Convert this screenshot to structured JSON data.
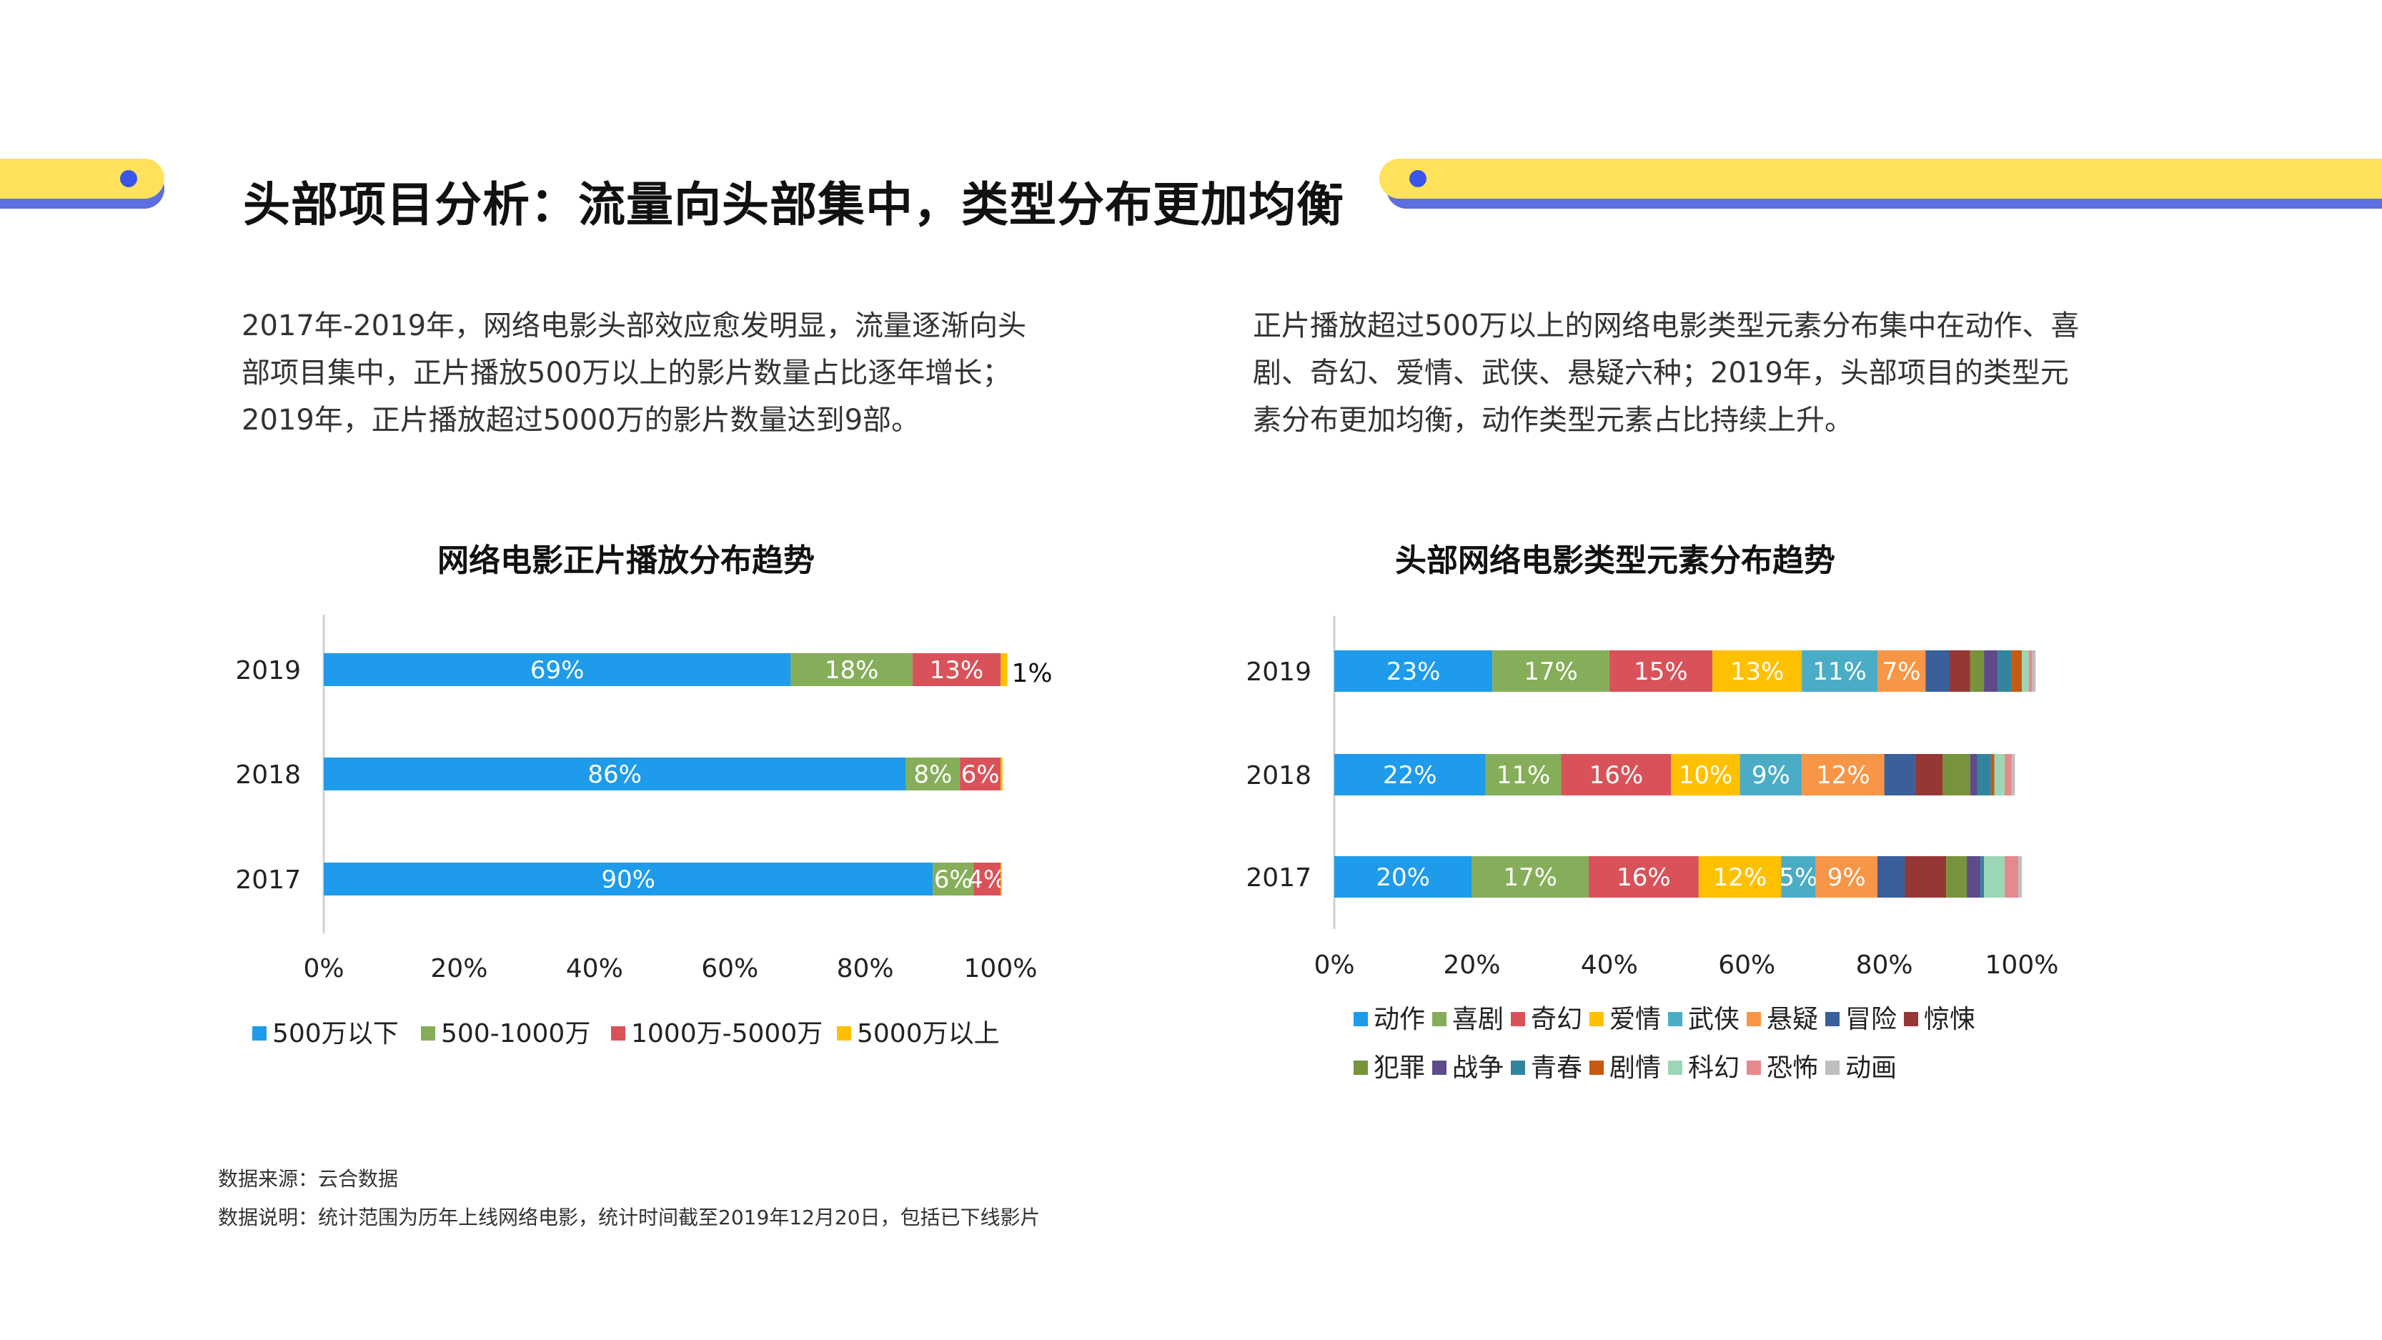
{
  "title": "头部项目分析：流量向头部集中，类型分布更加均衡",
  "left_paragraph": "2017年-2019年，网络电影头部效应愈发明显，流量逐渐向头部项目集中，正片播放500万以上的影片数量占比逐年增长；2019年，正片播放超过5000万的影片数量达到9部。",
  "right_paragraph": "正片播放超过500万以上的网络电影类型元素分布集中在动作、喜剧、奇幻、爱情、武侠、悬疑六种；2019年，头部项目的类型元素分布更加均衡，动作类型元素占比持续上升。",
  "footer": {
    "source": "数据来源：云合数据",
    "note": "数据说明：统计范围为历年上线网络电影，统计时间截至2019年12月20日，包括已下线影片"
  },
  "colors": {
    "accent_yellow": "#FFE15C",
    "accent_blue": "#5B6FE0",
    "dot_blue": "#3A56E8"
  },
  "chart_data": [
    {
      "type": "bar",
      "orientation": "horizontal",
      "stacked": true,
      "title": "网络电影正片播放分布趋势",
      "categories": [
        "2019",
        "2018",
        "2017"
      ],
      "xlim": [
        0,
        100
      ],
      "xticks": [
        "0%",
        "20%",
        "40%",
        "60%",
        "80%",
        "100%"
      ],
      "legend_position": "bottom",
      "series": [
        {
          "name": "500万以下",
          "color": "#1E9BEA",
          "values": [
            69,
            86,
            90
          ],
          "labels": [
            "69%",
            "86%",
            "90%"
          ]
        },
        {
          "name": "500-1000万",
          "color": "#86AE5A",
          "values": [
            18,
            8,
            6
          ],
          "labels": [
            "18%",
            "8%",
            "6%"
          ]
        },
        {
          "name": "1000万-5000万",
          "color": "#D9525A",
          "values": [
            13,
            6,
            4
          ],
          "labels": [
            "13%",
            "6%",
            "4%"
          ]
        },
        {
          "name": "5000万以上",
          "color": "#FFC000",
          "values": [
            1,
            0.3,
            0.2
          ],
          "labels": [
            "1%",
            "",
            ""
          ]
        }
      ]
    },
    {
      "type": "bar",
      "orientation": "horizontal",
      "stacked": true,
      "title": "头部网络电影类型元素分布趋势",
      "categories": [
        "2019",
        "2018",
        "2017"
      ],
      "xlim": [
        0,
        100
      ],
      "xticks": [
        "0%",
        "20%",
        "40%",
        "60%",
        "80%",
        "100%"
      ],
      "legend_position": "bottom",
      "series": [
        {
          "name": "动作",
          "color": "#1E9BEA",
          "values": [
            23,
            22,
            20
          ],
          "labels": [
            "23%",
            "22%",
            "20%"
          ]
        },
        {
          "name": "喜剧",
          "color": "#86AE5A",
          "values": [
            17,
            11,
            17
          ],
          "labels": [
            "17%",
            "11%",
            "17%"
          ]
        },
        {
          "name": "奇幻",
          "color": "#D9525A",
          "values": [
            15,
            16,
            16
          ],
          "labels": [
            "15%",
            "16%",
            "16%"
          ]
        },
        {
          "name": "爱情",
          "color": "#FFC000",
          "values": [
            13,
            10,
            12
          ],
          "labels": [
            "13%",
            "10%",
            "12%"
          ]
        },
        {
          "name": "武侠",
          "color": "#4BACC6",
          "values": [
            11,
            9,
            5
          ],
          "labels": [
            "11%",
            "9%",
            "5%"
          ]
        },
        {
          "name": "悬疑",
          "color": "#F79646",
          "values": [
            7,
            12,
            9
          ],
          "labels": [
            "7%",
            "12%",
            "9%"
          ]
        },
        {
          "name": "冒险",
          "color": "#3A5F9A",
          "values": [
            3.5,
            4.5,
            4
          ]
        },
        {
          "name": "惊悚",
          "color": "#953735",
          "values": [
            3,
            4,
            6
          ]
        },
        {
          "name": "犯罪",
          "color": "#77933C",
          "values": [
            2,
            4,
            3
          ]
        },
        {
          "name": "战争",
          "color": "#5F4B8B",
          "values": [
            2,
            1,
            2
          ]
        },
        {
          "name": "青春",
          "color": "#31859C",
          "values": [
            2,
            2,
            0.5
          ]
        },
        {
          "name": "剧情",
          "color": "#C55A11",
          "values": [
            1.5,
            0.5,
            0
          ]
        },
        {
          "name": "科幻",
          "color": "#9BD7B5",
          "values": [
            1,
            1.5,
            3
          ]
        },
        {
          "name": "恐怖",
          "color": "#E6898D",
          "values": [
            0.5,
            1,
            2
          ]
        },
        {
          "name": "动画",
          "color": "#BFBFBF",
          "values": [
            0.5,
            0.5,
            0.5
          ]
        }
      ]
    }
  ]
}
